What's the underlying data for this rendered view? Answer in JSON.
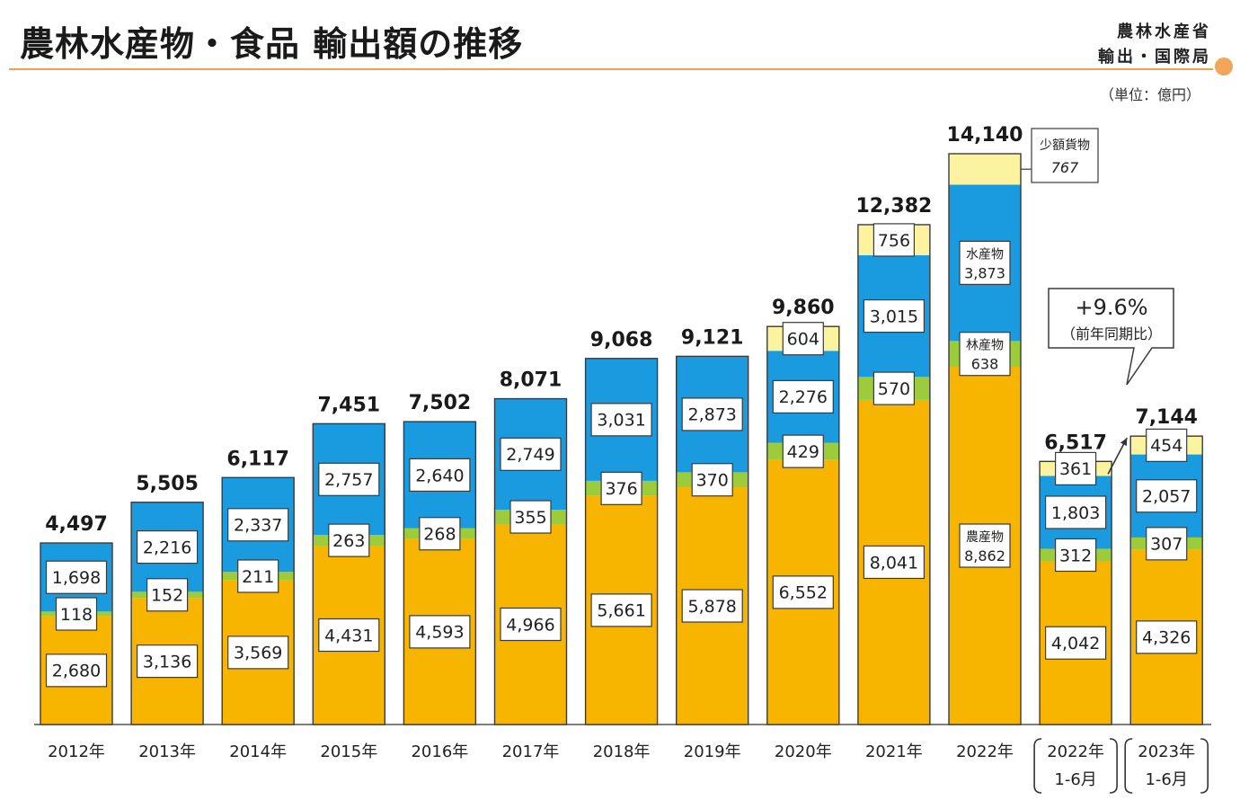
{
  "header": {
    "title": "農林水産物・食品 輸出額の推移",
    "org_line1": "農林水産省",
    "org_line2": "輸出・国際局",
    "unit": "（単位：億円）"
  },
  "colors": {
    "agri": "#f7b500",
    "forest": "#9ccc3c",
    "fish": "#1a9be0",
    "small": "#fbf3a0",
    "border": "#3a3a3a"
  },
  "chart_data": {
    "type": "bar",
    "stacked": true,
    "categories": [
      {
        "label": "2012年"
      },
      {
        "label": "2013年"
      },
      {
        "label": "2014年"
      },
      {
        "label": "2015年"
      },
      {
        "label": "2016年"
      },
      {
        "label": "2017年"
      },
      {
        "label": "2018年"
      },
      {
        "label": "2019年"
      },
      {
        "label": "2020年"
      },
      {
        "label": "2021年"
      },
      {
        "label": "2022年"
      },
      {
        "label": "2022年",
        "sublabel": "1-6月",
        "bracket": true
      },
      {
        "label": "2023年",
        "sublabel": "1-6月",
        "bracket": true
      }
    ],
    "totals": [
      4497,
      5505,
      6117,
      7451,
      7502,
      8071,
      9068,
      9121,
      9860,
      12382,
      14140,
      6517,
      7144
    ],
    "total_labels": [
      "4,497",
      "5,505",
      "6,117",
      "7,451",
      "7,502",
      "8,071",
      "9,068",
      "9,121",
      "9,860",
      "12,382",
      "14,140",
      "6,517",
      "7,144"
    ],
    "series": [
      {
        "key": "agri",
        "values": [
          2680,
          3136,
          3569,
          4431,
          4593,
          4966,
          5661,
          5878,
          6552,
          8041,
          8862,
          4042,
          4326
        ],
        "labels": [
          "2,680",
          "3,136",
          "3,569",
          "4,431",
          "4,593",
          "4,966",
          "5,661",
          "5,878",
          "6,552",
          "8,041",
          "8,862",
          "4,042",
          "4,326"
        ]
      },
      {
        "key": "forest",
        "values": [
          118,
          152,
          211,
          263,
          268,
          355,
          376,
          370,
          429,
          570,
          638,
          312,
          307
        ],
        "labels": [
          "118",
          "152",
          "211",
          "263",
          "268",
          "355",
          "376",
          "370",
          "429",
          "570",
          "638",
          "312",
          "307"
        ]
      },
      {
        "key": "fish",
        "values": [
          1698,
          2216,
          2337,
          2757,
          2640,
          2749,
          3031,
          2873,
          2276,
          3015,
          3873,
          1803,
          2057
        ],
        "labels": [
          "1,698",
          "2,216",
          "2,337",
          "2,757",
          "2,640",
          "2,749",
          "3,031",
          "2,873",
          "2,276",
          "3,015",
          "3,873",
          "1,803",
          "2,057"
        ]
      },
      {
        "key": "small",
        "values": [
          0,
          0,
          0,
          0,
          0,
          0,
          0,
          0,
          604,
          756,
          767,
          361,
          454
        ],
        "labels": [
          "",
          "",
          "",
          "",
          "",
          "",
          "",
          "",
          "604",
          "756",
          "",
          "361",
          "454"
        ]
      }
    ],
    "inline_names_2022": {
      "agri": "農産物",
      "forest": "林産物",
      "fish": "水産物"
    },
    "callout_2022_small": {
      "name": "少額貨物",
      "value": "767"
    },
    "growth_callout": {
      "text": "+9.6%",
      "sub": "（前年同期比）"
    },
    "ylim": [
      0,
      14140
    ],
    "grid": false
  }
}
